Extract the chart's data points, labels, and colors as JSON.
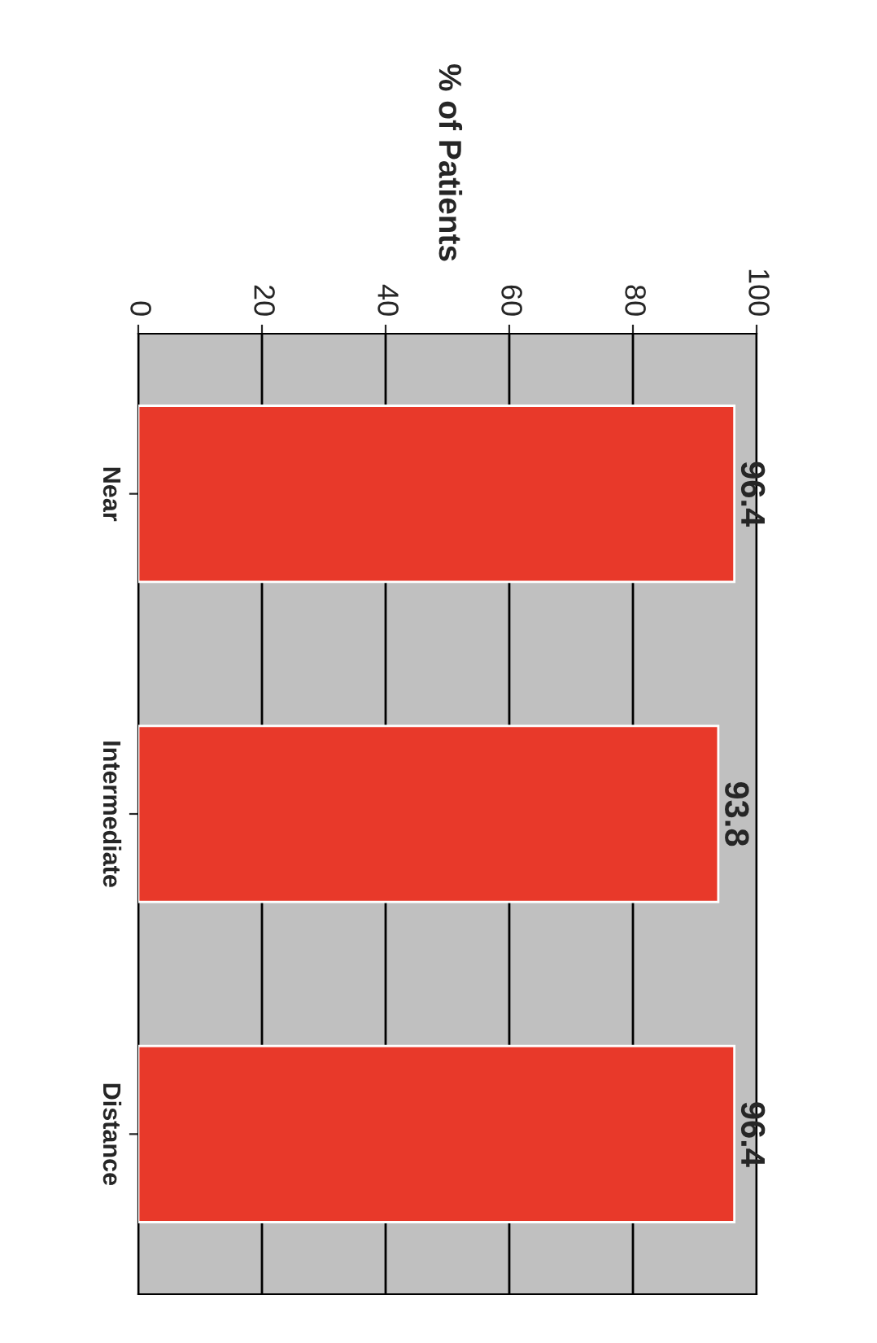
{
  "chart_data": {
    "type": "bar",
    "orientation": "horizontal",
    "ylabel": "% of Patients",
    "categories": [
      "Near",
      "Intermediate",
      "Distance"
    ],
    "values": [
      96.4,
      93.8,
      96.4
    ],
    "color": "#e8392a",
    "data_labels": true,
    "xlim": [
      0,
      100
    ],
    "xticks": [
      0,
      20,
      40,
      60,
      80,
      100
    ],
    "grid": "x",
    "legend": false
  }
}
